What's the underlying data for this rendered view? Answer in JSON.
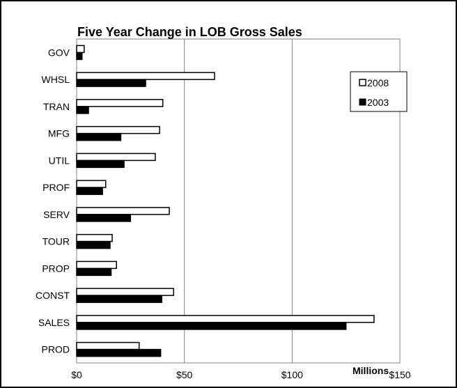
{
  "chart_data": {
    "type": "bar",
    "orientation": "horizontal",
    "title": "Five Year Change in LOB Gross Sales",
    "xlabel": "Millions",
    "ylabel": "",
    "categories": [
      "GOV",
      "WHSL",
      "TRAN",
      "MFG",
      "UTIL",
      "PROF",
      "SERV",
      "TOUR",
      "PROP",
      "CONST",
      "SALES",
      "PROD"
    ],
    "series": [
      {
        "name": "2008",
        "color": "#ffffff",
        "stroke": "#000000",
        "values": [
          3.5,
          64,
          40,
          38.5,
          36.5,
          13.5,
          43,
          16.5,
          18.5,
          45,
          138,
          29
        ]
      },
      {
        "name": "2003",
        "color": "#000000",
        "stroke": "#000000",
        "values": [
          2.5,
          32,
          5.5,
          20.5,
          22,
          12,
          25,
          15.5,
          16,
          39.5,
          125,
          39
        ]
      }
    ],
    "xlim": [
      0,
      150
    ],
    "xticks": [
      0,
      50,
      100,
      150
    ],
    "xtick_labels": [
      "$0",
      "$50",
      "$100",
      "$150"
    ],
    "grid": "vertical",
    "legend": "top-right"
  }
}
